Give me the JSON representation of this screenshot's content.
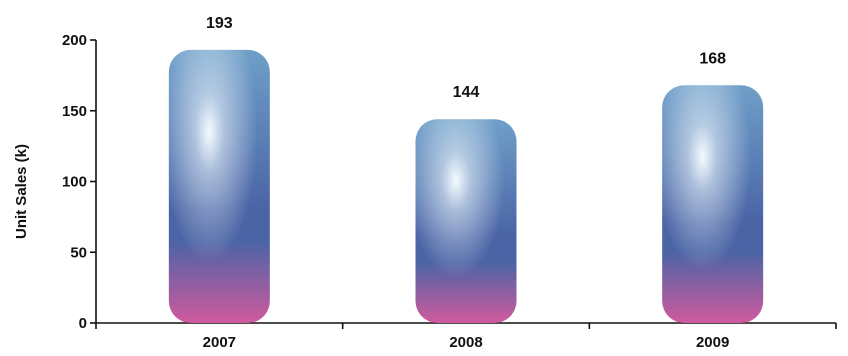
{
  "chart_data": {
    "type": "bar",
    "categories": [
      "2007",
      "2008",
      "2009"
    ],
    "values": [
      193,
      144,
      168
    ],
    "ylabel": "Unit Sales (k)",
    "ylim": [
      0,
      200
    ],
    "yticks": [
      "0",
      "50",
      "100",
      "150",
      "200"
    ],
    "grid": false,
    "legend": "none",
    "colors": {
      "bar_top": "#6f9fc9",
      "bar_highlight": "#f4fbff",
      "bar_middle": "#4a64a5",
      "bar_bottom": "#d05a9e",
      "axis": "#111111",
      "text": "#111111"
    }
  }
}
